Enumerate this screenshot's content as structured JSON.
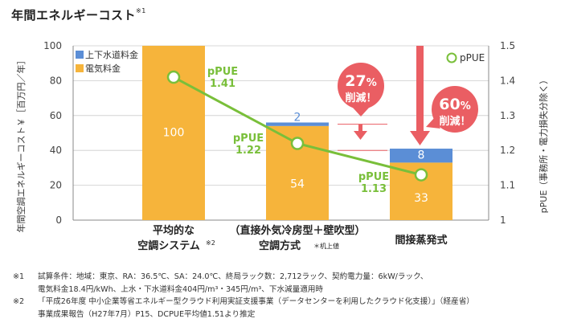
{
  "title": "年間エネルギーコスト",
  "title_sup": "※1",
  "colors": {
    "electric": "#f6b43b",
    "water": "#5b8ed6",
    "pue": "#79bf3a",
    "arrow": "#ea5e63",
    "axis": "#888888",
    "grid": "#cccccc"
  },
  "chart_data": {
    "type": "bar",
    "stacked": true,
    "ylabel": "年間空調エネルギーコスト￥［百万円／年］",
    "y2label": "pPUE（事務所・電力損失分除く）",
    "ylim": [
      0,
      100
    ],
    "yticks": [
      "0",
      "20",
      "40",
      "60",
      "80",
      "100"
    ],
    "y2lim": [
      1,
      1.5
    ],
    "y2ticks": [
      "1",
      "1.1",
      "1.2",
      "1.3",
      "1.4",
      "1.5"
    ],
    "categories": [
      {
        "line1": "平均的な",
        "line2": "空調システム",
        "sup": "※2"
      },
      {
        "line1": "（直接外気冷房型＋壁吹型）",
        "line2": "空調方式",
        "sup": "＊机上値"
      },
      {
        "line1": "間接蒸発式",
        "line2": "",
        "sup": ""
      }
    ],
    "series": [
      {
        "name": "電気料金",
        "color": "#f6b43b",
        "values": [
          100,
          54,
          33
        ],
        "labels": [
          "100",
          "54",
          "33"
        ]
      },
      {
        "name": "上下水道料金",
        "color": "#5b8ed6",
        "values": [
          0,
          2,
          8
        ],
        "labels": [
          "",
          "2",
          "8"
        ]
      }
    ],
    "legend": [
      "上下水道料金",
      "電気料金"
    ],
    "pue": {
      "name": "pPUE",
      "values": [
        1.41,
        1.22,
        1.13
      ],
      "labels": [
        {
          "name": "pPUE",
          "value": "1.41"
        },
        {
          "name": "pPUE",
          "value": "1.22"
        },
        {
          "name": "pPUE",
          "value": "1.13"
        }
      ]
    },
    "callouts": [
      {
        "pct": "27",
        "unit": "%",
        "text": "削減！"
      },
      {
        "pct": "60",
        "unit": "%",
        "text": "削減！"
      }
    ]
  },
  "notes": [
    {
      "mark": "※1",
      "lines": [
        "試算条件：地域：東京、RA：36.5℃、SA：24.0℃、終局ラック数：2,712ラック、契約電力量：6kW/ラック、",
        "電気料金18.4円/kWh、上水・下水道料金404円/m³・345円/m³、下水減量適用時"
      ]
    },
    {
      "mark": "※2",
      "lines": [
        "「平成26年度 中小企業等省エネルギー型クラウド利用実証支援事業（データセンターを利用したクラウド化支援）」（経産省）",
        "事業成果報告（H27年7月）P15、DCPUE平均値1.51より推定"
      ]
    }
  ]
}
